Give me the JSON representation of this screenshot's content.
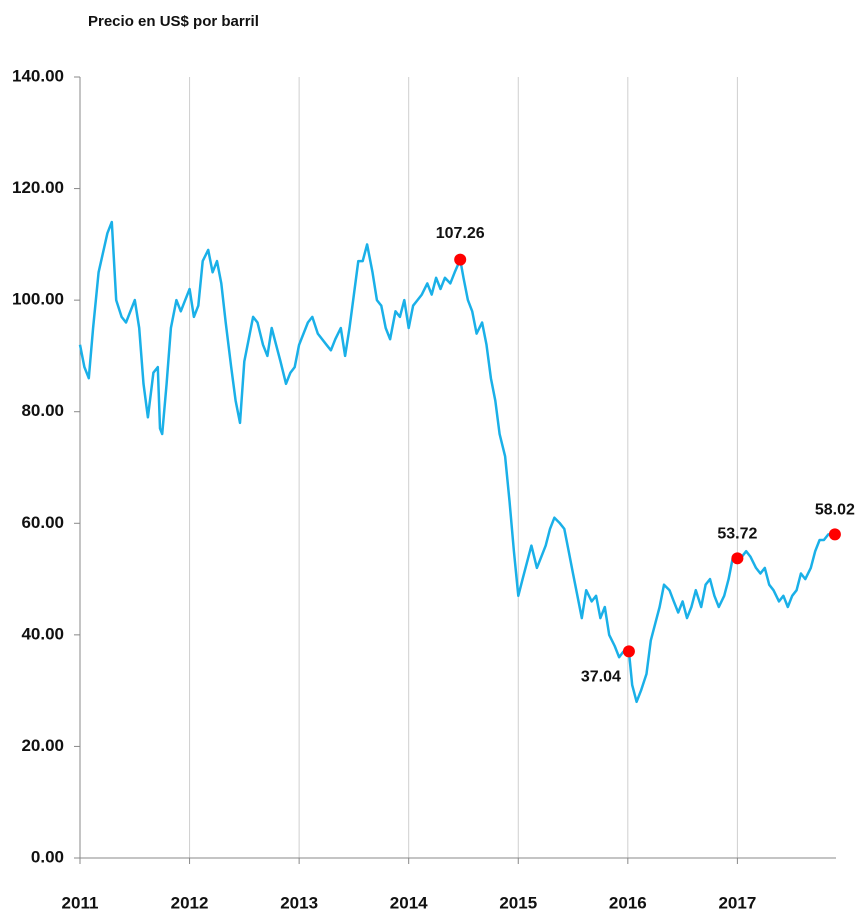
{
  "chart_data": {
    "type": "line",
    "y_label": "Precio en US$ por barril",
    "xlim": [
      2011,
      2017.9
    ],
    "xticks": [
      2011,
      2012,
      2013,
      2014,
      2015,
      2016,
      2017
    ],
    "ylim": [
      0,
      140
    ],
    "yticks": [
      {
        "value": 0,
        "label": "0.00"
      },
      {
        "value": 20,
        "label": "20.00"
      },
      {
        "value": 40,
        "label": "40.00"
      },
      {
        "value": 60,
        "label": "60.00"
      },
      {
        "value": 80,
        "label": "80.00"
      },
      {
        "value": 100,
        "label": "100.00"
      },
      {
        "value": 120,
        "label": "120.00"
      },
      {
        "value": 140,
        "label": "140.00"
      }
    ],
    "grid": "x",
    "series": [
      {
        "color": "#1ab0e8",
        "x": [
          2011.0,
          2011.04,
          2011.08,
          2011.12,
          2011.17,
          2011.25,
          2011.29,
          2011.33,
          2011.38,
          2011.42,
          2011.5,
          2011.54,
          2011.58,
          2011.62,
          2011.67,
          2011.71,
          2011.73,
          2011.75,
          2011.79,
          2011.83,
          2011.88,
          2011.92,
          2011.96,
          2012.0,
          2012.04,
          2012.08,
          2012.12,
          2012.17,
          2012.21,
          2012.25,
          2012.29,
          2012.33,
          2012.38,
          2012.42,
          2012.46,
          2012.5,
          2012.54,
          2012.58,
          2012.62,
          2012.67,
          2012.71,
          2012.75,
          2012.79,
          2012.83,
          2012.88,
          2012.92,
          2012.96,
          2013.0,
          2013.08,
          2013.12,
          2013.17,
          2013.25,
          2013.29,
          2013.33,
          2013.38,
          2013.42,
          2013.46,
          2013.5,
          2013.54,
          2013.58,
          2013.62,
          2013.67,
          2013.71,
          2013.75,
          2013.79,
          2013.83,
          2013.88,
          2013.92,
          2013.96,
          2014.0,
          2014.04,
          2014.08,
          2014.12,
          2014.17,
          2014.21,
          2014.25,
          2014.29,
          2014.33,
          2014.38,
          2014.42,
          2014.47,
          2014.5,
          2014.54,
          2014.58,
          2014.62,
          2014.67,
          2014.71,
          2014.75,
          2014.79,
          2014.83,
          2014.88,
          2014.92,
          2014.96,
          2015.0,
          2015.04,
          2015.08,
          2015.12,
          2015.17,
          2015.21,
          2015.25,
          2015.29,
          2015.33,
          2015.38,
          2015.42,
          2015.46,
          2015.5,
          2015.54,
          2015.58,
          2015.62,
          2015.67,
          2015.71,
          2015.75,
          2015.79,
          2015.83,
          2015.88,
          2015.92,
          2015.96,
          2016.01,
          2016.04,
          2016.08,
          2016.12,
          2016.17,
          2016.21,
          2016.25,
          2016.29,
          2016.33,
          2016.38,
          2016.42,
          2016.46,
          2016.5,
          2016.54,
          2016.58,
          2016.62,
          2016.67,
          2016.71,
          2016.75,
          2016.79,
          2016.83,
          2016.88,
          2016.92,
          2016.96,
          2017.0,
          2017.04,
          2017.08,
          2017.12,
          2017.17,
          2017.21,
          2017.25,
          2017.29,
          2017.33,
          2017.38,
          2017.42,
          2017.46,
          2017.5,
          2017.54,
          2017.58,
          2017.62,
          2017.67,
          2017.71,
          2017.75,
          2017.79,
          2017.83,
          2017.89
        ],
        "values": [
          92,
          88,
          86,
          95,
          105,
          112,
          114,
          100,
          97,
          96,
          100,
          95,
          85,
          79,
          87,
          88,
          77,
          76,
          85,
          95,
          100,
          98,
          100,
          102,
          97,
          99,
          107,
          109,
          105,
          107,
          103,
          96,
          88,
          82,
          78,
          89,
          93,
          97,
          96,
          92,
          90,
          95,
          92,
          89,
          85,
          87,
          88,
          92,
          96,
          97,
          94,
          92,
          91,
          93,
          95,
          90,
          95,
          101,
          107,
          107,
          110,
          105,
          100,
          99,
          95,
          93,
          98,
          97,
          100,
          95,
          99,
          100,
          101,
          103,
          101,
          104,
          102,
          104,
          103,
          105,
          107.26,
          104,
          100,
          98,
          94,
          96,
          92,
          86,
          82,
          76,
          72,
          64,
          55,
          47,
          50,
          53,
          56,
          52,
          54,
          56,
          59,
          61,
          60,
          59,
          55,
          51,
          47,
          43,
          48,
          46,
          47,
          43,
          45,
          40,
          38,
          36,
          37,
          37.04,
          31,
          28,
          30,
          33,
          39,
          42,
          45,
          49,
          48,
          46,
          44,
          46,
          43,
          45,
          48,
          45,
          49,
          50,
          47,
          45,
          47,
          50,
          54,
          53.72,
          54,
          55,
          54,
          52,
          51,
          52,
          49,
          48,
          46,
          47,
          45,
          47,
          48,
          51,
          50,
          52,
          55,
          57,
          57,
          58,
          58.02
        ]
      }
    ],
    "markers": {
      "color": "#ff0000",
      "x": [
        2014.47,
        2016.01,
        2017.0,
        2017.89
      ],
      "values": [
        107.26,
        37.04,
        53.72,
        58.02
      ]
    }
  }
}
